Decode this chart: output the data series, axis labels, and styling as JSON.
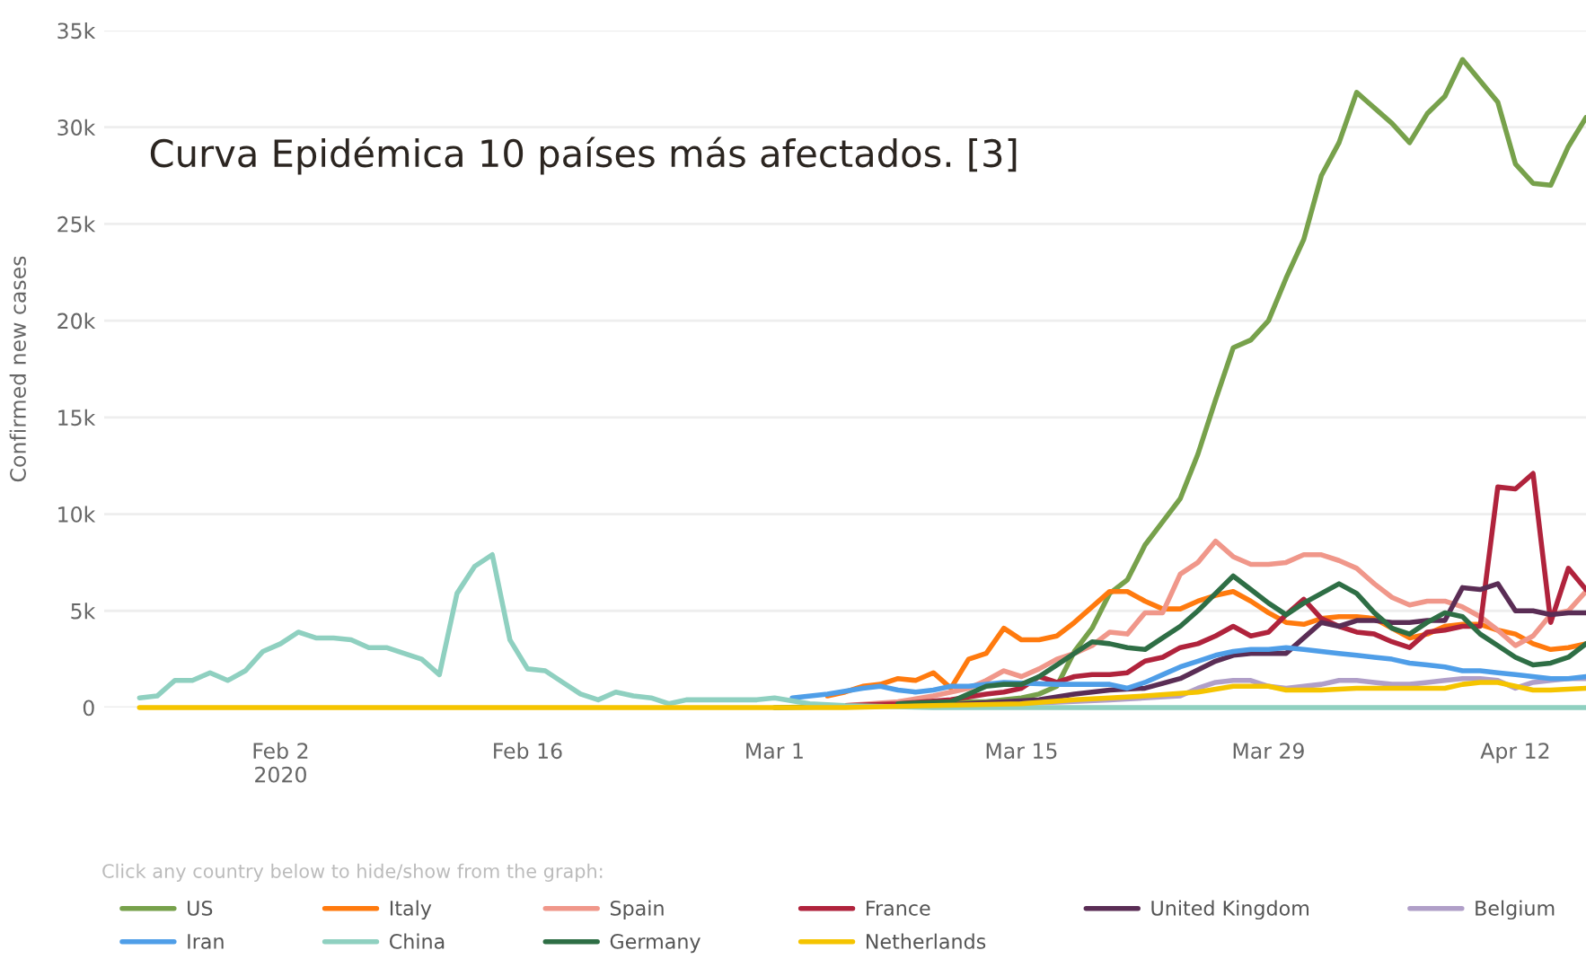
{
  "chart_data": {
    "type": "line",
    "title": "Curva Epidémica 10 países más afectados. [3]",
    "ylabel": "Confirmed new cases",
    "annotations": [
      "Click any country below to hide/show from the graph:"
    ],
    "xlim": [
      "2020-01-23",
      "2020-04-16"
    ],
    "ylim": [
      0,
      35000
    ],
    "xticks": [
      {
        "value": "2020-02-02",
        "label": "Feb 2\n2020"
      },
      {
        "value": "2020-02-16",
        "label": "Feb 16"
      },
      {
        "value": "2020-03-01",
        "label": "Mar 1"
      },
      {
        "value": "2020-03-15",
        "label": "Mar 15"
      },
      {
        "value": "2020-03-29",
        "label": "Mar 29"
      },
      {
        "value": "2020-04-12",
        "label": "Apr 12"
      }
    ],
    "yticks": [
      0,
      {
        "value": 5000,
        "label": "5k"
      },
      {
        "value": 10000,
        "label": "10k"
      },
      {
        "value": 15000,
        "label": "15k"
      },
      {
        "value": 20000,
        "label": "20k"
      },
      {
        "value": 25000,
        "label": "25k"
      },
      {
        "value": 30000,
        "label": "30k"
      },
      {
        "value": 35000,
        "label": "35k"
      }
    ],
    "grid": "y",
    "legend": "bottom",
    "series": [
      {
        "name": "US",
        "color": "#77a14b",
        "x": [
          "2020-03-01",
          "2020-03-08",
          "2020-03-12",
          "2020-03-13",
          "2020-03-14",
          "2020-03-15",
          "2020-03-16",
          "2020-03-17",
          "2020-03-18",
          "2020-03-19",
          "2020-03-20",
          "2020-03-21",
          "2020-03-22",
          "2020-03-23",
          "2020-03-24",
          "2020-03-25",
          "2020-03-26",
          "2020-03-27",
          "2020-03-28",
          "2020-03-29",
          "2020-03-30",
          "2020-03-31",
          "2020-04-01",
          "2020-04-02",
          "2020-04-03",
          "2020-04-04",
          "2020-04-05",
          "2020-04-06",
          "2020-04-07",
          "2020-04-08",
          "2020-04-09",
          "2020-04-10",
          "2020-04-11",
          "2020-04-12",
          "2020-04-13",
          "2020-04-14",
          "2020-04-15",
          "2020-04-16"
        ],
        "values": [
          0,
          100,
          300,
          300,
          400,
          500,
          700,
          1100,
          2900,
          4100,
          5900,
          6600,
          8400,
          9600,
          10800,
          13100,
          15900,
          18600,
          19000,
          20000,
          22200,
          24200,
          27500,
          29200,
          31800,
          31000,
          30200,
          29200,
          30700,
          31600,
          33500,
          32400,
          31300,
          28100,
          27100,
          27000,
          29000,
          30500
        ]
      },
      {
        "name": "Italy",
        "color": "#ff7a0e",
        "x": [
          "2020-03-04",
          "2020-03-05",
          "2020-03-06",
          "2020-03-07",
          "2020-03-08",
          "2020-03-09",
          "2020-03-10",
          "2020-03-11",
          "2020-03-12",
          "2020-03-13",
          "2020-03-14",
          "2020-03-15",
          "2020-03-16",
          "2020-03-17",
          "2020-03-18",
          "2020-03-19",
          "2020-03-20",
          "2020-03-21",
          "2020-03-22",
          "2020-03-23",
          "2020-03-24",
          "2020-03-25",
          "2020-03-26",
          "2020-03-27",
          "2020-03-28",
          "2020-03-29",
          "2020-03-30",
          "2020-03-31",
          "2020-04-01",
          "2020-04-02",
          "2020-04-03",
          "2020-04-04",
          "2020-04-05",
          "2020-04-06",
          "2020-04-07",
          "2020-04-08",
          "2020-04-09",
          "2020-04-10",
          "2020-04-11",
          "2020-04-12",
          "2020-04-13",
          "2020-04-14",
          "2020-04-15",
          "2020-04-16"
        ],
        "values": [
          600,
          800,
          1100,
          1200,
          1500,
          1400,
          1800,
          1000,
          2500,
          2800,
          4100,
          3500,
          3500,
          3700,
          4400,
          5200,
          6000,
          6000,
          5500,
          5100,
          5100,
          5500,
          5800,
          6000,
          5500,
          4900,
          4400,
          4300,
          4600,
          4700,
          4700,
          4600,
          4100,
          3600,
          3800,
          4200,
          4300,
          4300,
          4000,
          3800,
          3300,
          3000,
          3100,
          3300
        ]
      },
      {
        "name": "Spain",
        "color": "#f0978a",
        "x": [
          "2020-03-05",
          "2020-03-08",
          "2020-03-10",
          "2020-03-11",
          "2020-03-12",
          "2020-03-13",
          "2020-03-14",
          "2020-03-15",
          "2020-03-16",
          "2020-03-17",
          "2020-03-18",
          "2020-03-19",
          "2020-03-20",
          "2020-03-21",
          "2020-03-22",
          "2020-03-23",
          "2020-03-24",
          "2020-03-25",
          "2020-03-26",
          "2020-03-27",
          "2020-03-28",
          "2020-03-29",
          "2020-03-30",
          "2020-03-31",
          "2020-04-01",
          "2020-04-02",
          "2020-04-03",
          "2020-04-04",
          "2020-04-05",
          "2020-04-06",
          "2020-04-07",
          "2020-04-08",
          "2020-04-09",
          "2020-04-10",
          "2020-04-11",
          "2020-04-12",
          "2020-04-13",
          "2020-04-14",
          "2020-04-15",
          "2020-04-16"
        ],
        "values": [
          100,
          300,
          600,
          800,
          1000,
          1400,
          1900,
          1600,
          2000,
          2500,
          2800,
          3200,
          3900,
          3800,
          4900,
          4900,
          6900,
          7500,
          8600,
          7800,
          7400,
          7400,
          7500,
          7900,
          7900,
          7600,
          7200,
          6400,
          5700,
          5300,
          5500,
          5500,
          5200,
          4700,
          4000,
          3200,
          3700,
          4800,
          5000,
          6000
        ]
      },
      {
        "name": "France",
        "color": "#b0233c",
        "x": [
          "2020-03-05",
          "2020-03-08",
          "2020-03-11",
          "2020-03-13",
          "2020-03-14",
          "2020-03-15",
          "2020-03-16",
          "2020-03-17",
          "2020-03-18",
          "2020-03-19",
          "2020-03-20",
          "2020-03-21",
          "2020-03-22",
          "2020-03-23",
          "2020-03-24",
          "2020-03-25",
          "2020-03-26",
          "2020-03-27",
          "2020-03-28",
          "2020-03-29",
          "2020-03-30",
          "2020-03-31",
          "2020-04-01",
          "2020-04-02",
          "2020-04-03",
          "2020-04-04",
          "2020-04-05",
          "2020-04-06",
          "2020-04-07",
          "2020-04-08",
          "2020-04-09",
          "2020-04-10",
          "2020-04-11",
          "2020-04-12",
          "2020-04-13",
          "2020-04-14",
          "2020-04-15",
          "2020-04-16"
        ],
        "values": [
          100,
          200,
          400,
          700,
          800,
          1000,
          1600,
          1300,
          1600,
          1700,
          1700,
          1800,
          2400,
          2600,
          3100,
          3300,
          3700,
          4200,
          3700,
          3900,
          4800,
          5600,
          4600,
          4200,
          3900,
          3800,
          3400,
          3100,
          3900,
          4000,
          4200,
          4200,
          11400,
          11300,
          12100,
          4400,
          7200,
          6100
        ]
      },
      {
        "name": "United Kingdom",
        "color": "#5a2d55",
        "x": [
          "2020-03-10",
          "2020-03-14",
          "2020-03-16",
          "2020-03-18",
          "2020-03-20",
          "2020-03-22",
          "2020-03-24",
          "2020-03-26",
          "2020-03-27",
          "2020-03-28",
          "2020-03-29",
          "2020-03-30",
          "2020-03-31",
          "2020-04-01",
          "2020-04-02",
          "2020-04-03",
          "2020-04-04",
          "2020-04-05",
          "2020-04-06",
          "2020-04-07",
          "2020-04-08",
          "2020-04-09",
          "2020-04-10",
          "2020-04-11",
          "2020-04-12",
          "2020-04-13",
          "2020-04-14",
          "2020-04-15",
          "2020-04-16"
        ],
        "values": [
          100,
          300,
          400,
          700,
          900,
          1000,
          1500,
          2400,
          2700,
          2800,
          2800,
          2800,
          3600,
          4400,
          4200,
          4500,
          4500,
          4400,
          4400,
          4500,
          4500,
          6200,
          6100,
          6400,
          5000,
          5000,
          4800,
          4900,
          4900
        ]
      },
      {
        "name": "Belgium",
        "color": "#b09fc8",
        "x": [
          "2020-03-15",
          "2020-03-20",
          "2020-03-24",
          "2020-03-25",
          "2020-03-26",
          "2020-03-27",
          "2020-03-28",
          "2020-03-29",
          "2020-03-30",
          "2020-03-31",
          "2020-04-01",
          "2020-04-02",
          "2020-04-03",
          "2020-04-04",
          "2020-04-05",
          "2020-04-06",
          "2020-04-07",
          "2020-04-08",
          "2020-04-09",
          "2020-04-10",
          "2020-04-11",
          "2020-04-12",
          "2020-04-13",
          "2020-04-14",
          "2020-04-15",
          "2020-04-16"
        ],
        "values": [
          200,
          400,
          600,
          1000,
          1300,
          1400,
          1400,
          1100,
          1000,
          1100,
          1200,
          1400,
          1400,
          1300,
          1200,
          1200,
          1300,
          1400,
          1500,
          1500,
          1400,
          1000,
          1300,
          1400,
          1500,
          1500
        ]
      },
      {
        "name": "Iran",
        "color": "#4f9ee8",
        "x": [
          "2020-03-02",
          "2020-03-04",
          "2020-03-06",
          "2020-03-07",
          "2020-03-08",
          "2020-03-09",
          "2020-03-10",
          "2020-03-11",
          "2020-03-12",
          "2020-03-13",
          "2020-03-14",
          "2020-03-17",
          "2020-03-20",
          "2020-03-21",
          "2020-03-22",
          "2020-03-23",
          "2020-03-24",
          "2020-03-25",
          "2020-03-26",
          "2020-03-27",
          "2020-03-28",
          "2020-03-29",
          "2020-03-30",
          "2020-03-31",
          "2020-04-01",
          "2020-04-02",
          "2020-04-03",
          "2020-04-04",
          "2020-04-05",
          "2020-04-06",
          "2020-04-07",
          "2020-04-08",
          "2020-04-09",
          "2020-04-10",
          "2020-04-11",
          "2020-04-12",
          "2020-04-13",
          "2020-04-14",
          "2020-04-15",
          "2020-04-16"
        ],
        "values": [
          500,
          700,
          1000,
          1100,
          900,
          800,
          900,
          1100,
          1100,
          1200,
          1300,
          1200,
          1200,
          1000,
          1300,
          1700,
          2100,
          2400,
          2700,
          2900,
          3000,
          3000,
          3100,
          3000,
          2900,
          2800,
          2700,
          2600,
          2500,
          2300,
          2200,
          2100,
          1900,
          1900,
          1800,
          1700,
          1600,
          1500,
          1500,
          1600
        ]
      },
      {
        "name": "China",
        "color": "#8fd0c0",
        "x": [
          "2020-01-25",
          "2020-01-26",
          "2020-01-27",
          "2020-01-28",
          "2020-01-29",
          "2020-01-30",
          "2020-01-31",
          "2020-02-01",
          "2020-02-02",
          "2020-02-03",
          "2020-02-04",
          "2020-02-05",
          "2020-02-06",
          "2020-02-07",
          "2020-02-08",
          "2020-02-09",
          "2020-02-10",
          "2020-02-11",
          "2020-02-12",
          "2020-02-13",
          "2020-02-14",
          "2020-02-15",
          "2020-02-16",
          "2020-02-17",
          "2020-02-18",
          "2020-02-19",
          "2020-02-20",
          "2020-02-21",
          "2020-02-22",
          "2020-02-23",
          "2020-02-24",
          "2020-02-25",
          "2020-02-26",
          "2020-02-27",
          "2020-02-28",
          "2020-02-29",
          "2020-03-01",
          "2020-03-03",
          "2020-03-05",
          "2020-03-10",
          "2020-04-16"
        ],
        "values": [
          500,
          600,
          1400,
          1400,
          1800,
          1400,
          1900,
          2900,
          3300,
          3900,
          3600,
          3600,
          3500,
          3100,
          3100,
          2800,
          2500,
          1700,
          5900,
          7300,
          7900,
          3500,
          2000,
          1900,
          1300,
          700,
          400,
          800,
          600,
          500,
          200,
          400,
          400,
          400,
          400,
          400,
          500,
          200,
          100,
          0,
          0
        ]
      },
      {
        "name": "Germany",
        "color": "#2e6e45",
        "x": [
          "2020-03-08",
          "2020-03-11",
          "2020-03-12",
          "2020-03-13",
          "2020-03-14",
          "2020-03-15",
          "2020-03-16",
          "2020-03-17",
          "2020-03-18",
          "2020-03-19",
          "2020-03-20",
          "2020-03-21",
          "2020-03-22",
          "2020-03-23",
          "2020-03-24",
          "2020-03-25",
          "2020-03-26",
          "2020-03-27",
          "2020-03-28",
          "2020-03-29",
          "2020-03-30",
          "2020-03-31",
          "2020-04-01",
          "2020-04-02",
          "2020-04-03",
          "2020-04-04",
          "2020-04-05",
          "2020-04-06",
          "2020-04-07",
          "2020-04-08",
          "2020-04-09",
          "2020-04-10",
          "2020-04-11",
          "2020-04-12",
          "2020-04-13",
          "2020-04-14",
          "2020-04-15",
          "2020-04-16"
        ],
        "values": [
          200,
          300,
          700,
          1100,
          1200,
          1200,
          1600,
          2200,
          2800,
          3400,
          3300,
          3100,
          3000,
          3600,
          4200,
          5000,
          5900,
          6800,
          6100,
          5400,
          4800,
          5400,
          5900,
          6400,
          5900,
          4900,
          4100,
          3800,
          4400,
          4900,
          4700,
          3800,
          3200,
          2600,
          2200,
          2300,
          2600,
          3300
        ]
      },
      {
        "name": "Netherlands",
        "color": "#f5c400",
        "x": [
          "2020-01-25",
          "2020-03-05",
          "2020-03-10",
          "2020-03-15",
          "2020-03-18",
          "2020-03-20",
          "2020-03-22",
          "2020-03-25",
          "2020-03-27",
          "2020-03-29",
          "2020-03-30",
          "2020-04-01",
          "2020-04-03",
          "2020-04-06",
          "2020-04-08",
          "2020-04-09",
          "2020-04-10",
          "2020-04-11",
          "2020-04-12",
          "2020-04-13",
          "2020-04-14",
          "2020-04-16"
        ],
        "values": [
          0,
          0,
          100,
          200,
          400,
          500,
          600,
          800,
          1100,
          1100,
          900,
          900,
          1000,
          1000,
          1000,
          1200,
          1300,
          1300,
          1100,
          900,
          900,
          1000
        ]
      }
    ]
  }
}
